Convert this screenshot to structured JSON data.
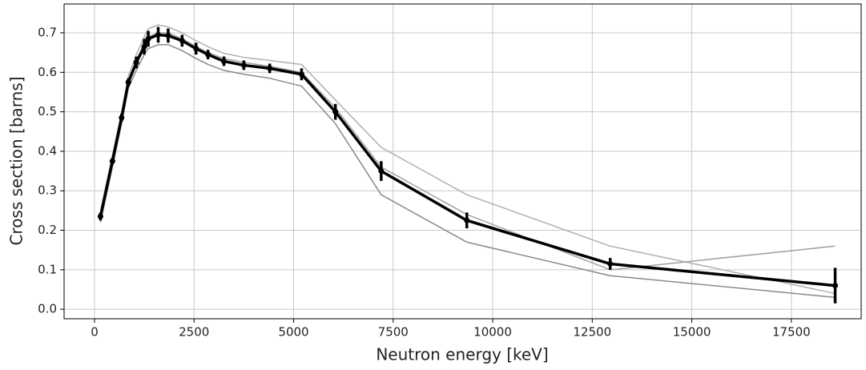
{
  "chart_data": {
    "type": "line",
    "x_label": "Neutron energy [keV]",
    "y_label": "Cross section [barns]",
    "x": [
      150,
      450,
      680,
      850,
      1050,
      1250,
      1350,
      1600,
      1850,
      2200,
      2550,
      2850,
      3250,
      3750,
      4400,
      5200,
      6050,
      7200,
      9350,
      12950,
      18600
    ],
    "series": [
      {
        "color": "#b0b0b0",
        "values": [
          0.25,
          0.39,
          0.5,
          0.59,
          0.645,
          0.69,
          0.71,
          0.72,
          0.715,
          0.7,
          0.68,
          0.665,
          0.648,
          0.638,
          0.63,
          0.62,
          0.53,
          0.41,
          0.29,
          0.16,
          0.04
        ]
      },
      {
        "color": "#8a8a8a",
        "values": [
          0.22,
          0.36,
          0.47,
          0.56,
          0.605,
          0.645,
          0.66,
          0.67,
          0.67,
          0.655,
          0.635,
          0.62,
          0.605,
          0.595,
          0.585,
          0.565,
          0.47,
          0.29,
          0.17,
          0.085,
          0.03
        ]
      },
      {
        "color": "#a0a0a0",
        "values": [
          0.24,
          0.38,
          0.49,
          0.58,
          0.63,
          0.675,
          0.69,
          0.7,
          0.7,
          0.685,
          0.665,
          0.65,
          0.635,
          0.625,
          0.615,
          0.6,
          0.51,
          0.36,
          0.24,
          0.1,
          0.16
        ]
      },
      {
        "color": "#000000",
        "values": [
          0.235,
          0.375,
          0.485,
          0.575,
          0.625,
          0.665,
          0.685,
          0.695,
          0.693,
          0.68,
          0.66,
          0.645,
          0.628,
          0.618,
          0.61,
          0.595,
          0.5,
          0.35,
          0.225,
          0.115,
          0.06
        ],
        "errors": [
          0.01,
          0.008,
          0.01,
          0.01,
          0.015,
          0.02,
          0.02,
          0.02,
          0.018,
          0.015,
          0.015,
          0.012,
          0.012,
          0.012,
          0.012,
          0.015,
          0.02,
          0.025,
          0.02,
          0.015,
          0.045
        ]
      }
    ],
    "xlim": [
      -764,
      19254
    ],
    "ylim": [
      -0.024,
      0.773
    ],
    "xticks": [
      0,
      2500,
      5000,
      7500,
      10000,
      12500,
      15000,
      17500
    ],
    "yticks": [
      {
        "value": 0,
        "label": "0.0"
      },
      0.1,
      0.2,
      0.3,
      0.4,
      0.5,
      0.6,
      0.7
    ],
    "grid": true
  }
}
